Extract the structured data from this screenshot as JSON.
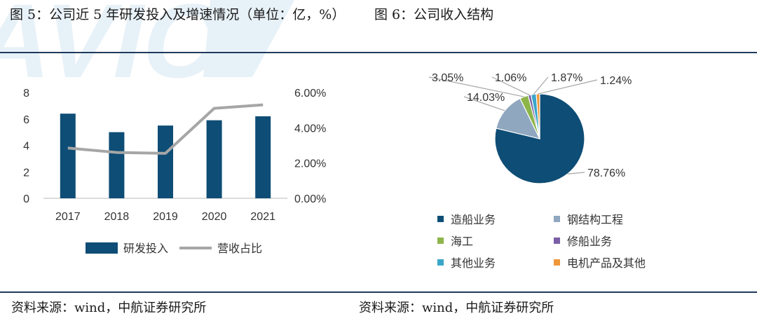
{
  "titles": {
    "left": "图 5：公司近 5 年研发投入及增速情况（单位：亿，%）",
    "right": "图 6：公司收入结构"
  },
  "sources": {
    "left": "资料来源：wind，中航证券研究所",
    "right": "资料来源：wind，中航证券研究所"
  },
  "watermark_text": "AVIC",
  "colors": {
    "bar": "#0e4d75",
    "line": "#a6a6a6",
    "rule": "#1f3b5c",
    "axis": "#d0d0d0"
  },
  "chart_data": [
    {
      "type": "bar",
      "categories": [
        "2017",
        "2018",
        "2019",
        "2020",
        "2021"
      ],
      "series": [
        {
          "name": "研发投入",
          "type": "bar",
          "axis": "left",
          "values": [
            6.4,
            5.0,
            5.5,
            5.9,
            6.2
          ]
        },
        {
          "name": "营收占比",
          "type": "line",
          "axis": "right",
          "values": [
            2.85,
            2.6,
            2.55,
            5.1,
            5.3
          ]
        }
      ],
      "y_left": {
        "min": 0,
        "max": 8,
        "ticks": [
          "0",
          "2",
          "4",
          "6",
          "8"
        ]
      },
      "y_right": {
        "min": 0,
        "max": 6,
        "ticks": [
          "0.00%",
          "2.00%",
          "4.00%",
          "6.00%"
        ]
      },
      "legend_position": "bottom",
      "grid": false
    },
    {
      "type": "pie",
      "slices": [
        {
          "name": "造船业务",
          "value": 78.76,
          "label": "78.76%",
          "color": "#0e4d75"
        },
        {
          "name": "钢结构工程",
          "value": 14.03,
          "label": "14.03%",
          "color": "#8fa7bf"
        },
        {
          "name": "海工",
          "value": 3.05,
          "label": "3.05%",
          "color": "#8db54a"
        },
        {
          "name": "修船业务",
          "value": 1.06,
          "label": "1.06%",
          "color": "#7a5fa6"
        },
        {
          "name": "其他业务",
          "value": 1.87,
          "label": "1.87%",
          "color": "#3aa6c8"
        },
        {
          "name": "电机产品及其他",
          "value": 1.24,
          "label": "1.24%",
          "color": "#f0973a"
        }
      ],
      "legend_position": "bottom"
    }
  ]
}
